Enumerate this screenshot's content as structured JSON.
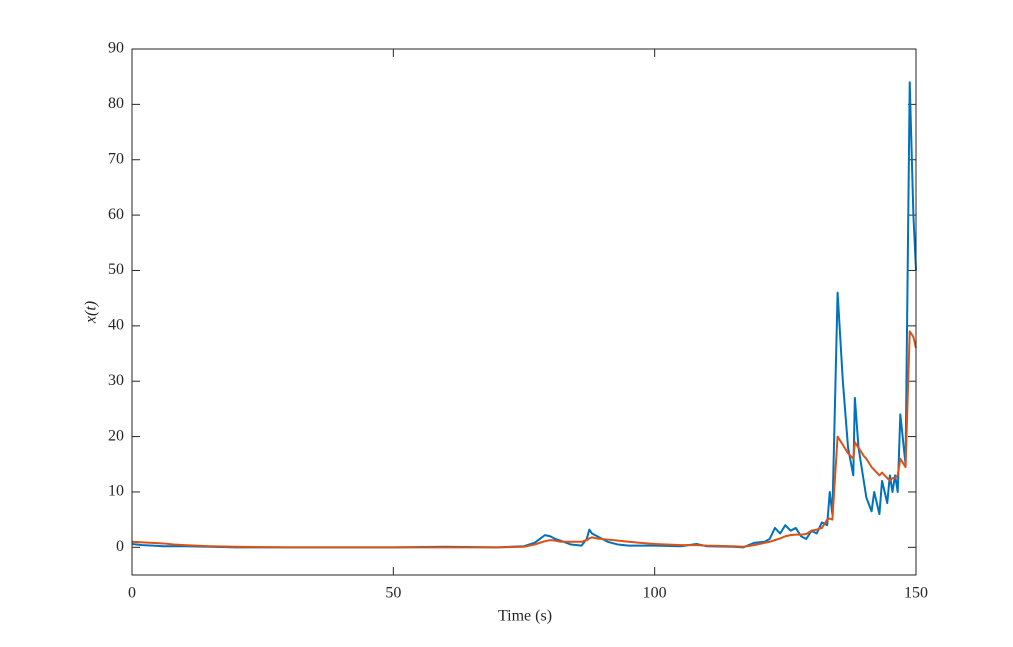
{
  "chart_data": {
    "type": "line",
    "xlabel": "Time (s)",
    "ylabel": "x(t)",
    "x": [
      0,
      2,
      4,
      6,
      8,
      10,
      15,
      20,
      30,
      40,
      50,
      60,
      70,
      75,
      77,
      78,
      79,
      80,
      81,
      82,
      84,
      86,
      87,
      87.5,
      88,
      89,
      91,
      93,
      95,
      100,
      105,
      108,
      110,
      115,
      117,
      119,
      121,
      122,
      123,
      124,
      125,
      126,
      127,
      128,
      129,
      130,
      131,
      132,
      133,
      133.5,
      134,
      135,
      136,
      137,
      138,
      138.3,
      139,
      140,
      140.5,
      141.5,
      142,
      143,
      143.5,
      144.5,
      145,
      145.5,
      146,
      146.5,
      147,
      148,
      148.8,
      149.5,
      150
    ],
    "series": [
      {
        "color": "#0072BD",
        "values": [
          0.6,
          0.4,
          0.3,
          0.2,
          0.2,
          0.2,
          0.1,
          0,
          0,
          0,
          0,
          0.1,
          0,
          0.2,
          0.8,
          1.5,
          2.2,
          2,
          1.5,
          1.2,
          0.5,
          0.3,
          1.5,
          3.2,
          2.5,
          2,
          1,
          0.5,
          0.3,
          0.3,
          0.2,
          0.6,
          0.2,
          0.1,
          0,
          0.8,
          1,
          1.5,
          3.5,
          2.5,
          4,
          3,
          3.5,
          2,
          1.5,
          3,
          2.5,
          4.5,
          4,
          10,
          6,
          46,
          30,
          18,
          13,
          27,
          18,
          12,
          9,
          6.5,
          10,
          6,
          12,
          8,
          13,
          10,
          13,
          10,
          24,
          15,
          84,
          60,
          50
        ]
      },
      {
        "color": "#D95319",
        "values": [
          1,
          0.9,
          0.8,
          0.7,
          0.5,
          0.4,
          0.2,
          0.1,
          0,
          0,
          0,
          0,
          0,
          0.1,
          0.5,
          0.8,
          1.1,
          1.3,
          1.2,
          1,
          1,
          1,
          1.3,
          1.6,
          1.8,
          1.6,
          1.4,
          1.2,
          1,
          0.6,
          0.4,
          0.4,
          0.3,
          0.2,
          0.1,
          0.4,
          0.8,
          1,
          1.3,
          1.6,
          2,
          2.2,
          2.3,
          2.3,
          2.4,
          3,
          3.2,
          3.5,
          5,
          5.2,
          5,
          20,
          18.5,
          17,
          16,
          19,
          18,
          16.5,
          16,
          14.5,
          14,
          13,
          13.5,
          12.5,
          12,
          12.5,
          12.5,
          13,
          16,
          14.5,
          39,
          38,
          36
        ]
      }
    ],
    "xlim": [
      0,
      150
    ],
    "xticks": [
      0,
      50,
      100,
      150
    ],
    "ylim": [
      -5,
      90
    ],
    "yticks": [
      0,
      10,
      20,
      30,
      40,
      50,
      60,
      70,
      80,
      90
    ],
    "grid": false,
    "box": true
  }
}
